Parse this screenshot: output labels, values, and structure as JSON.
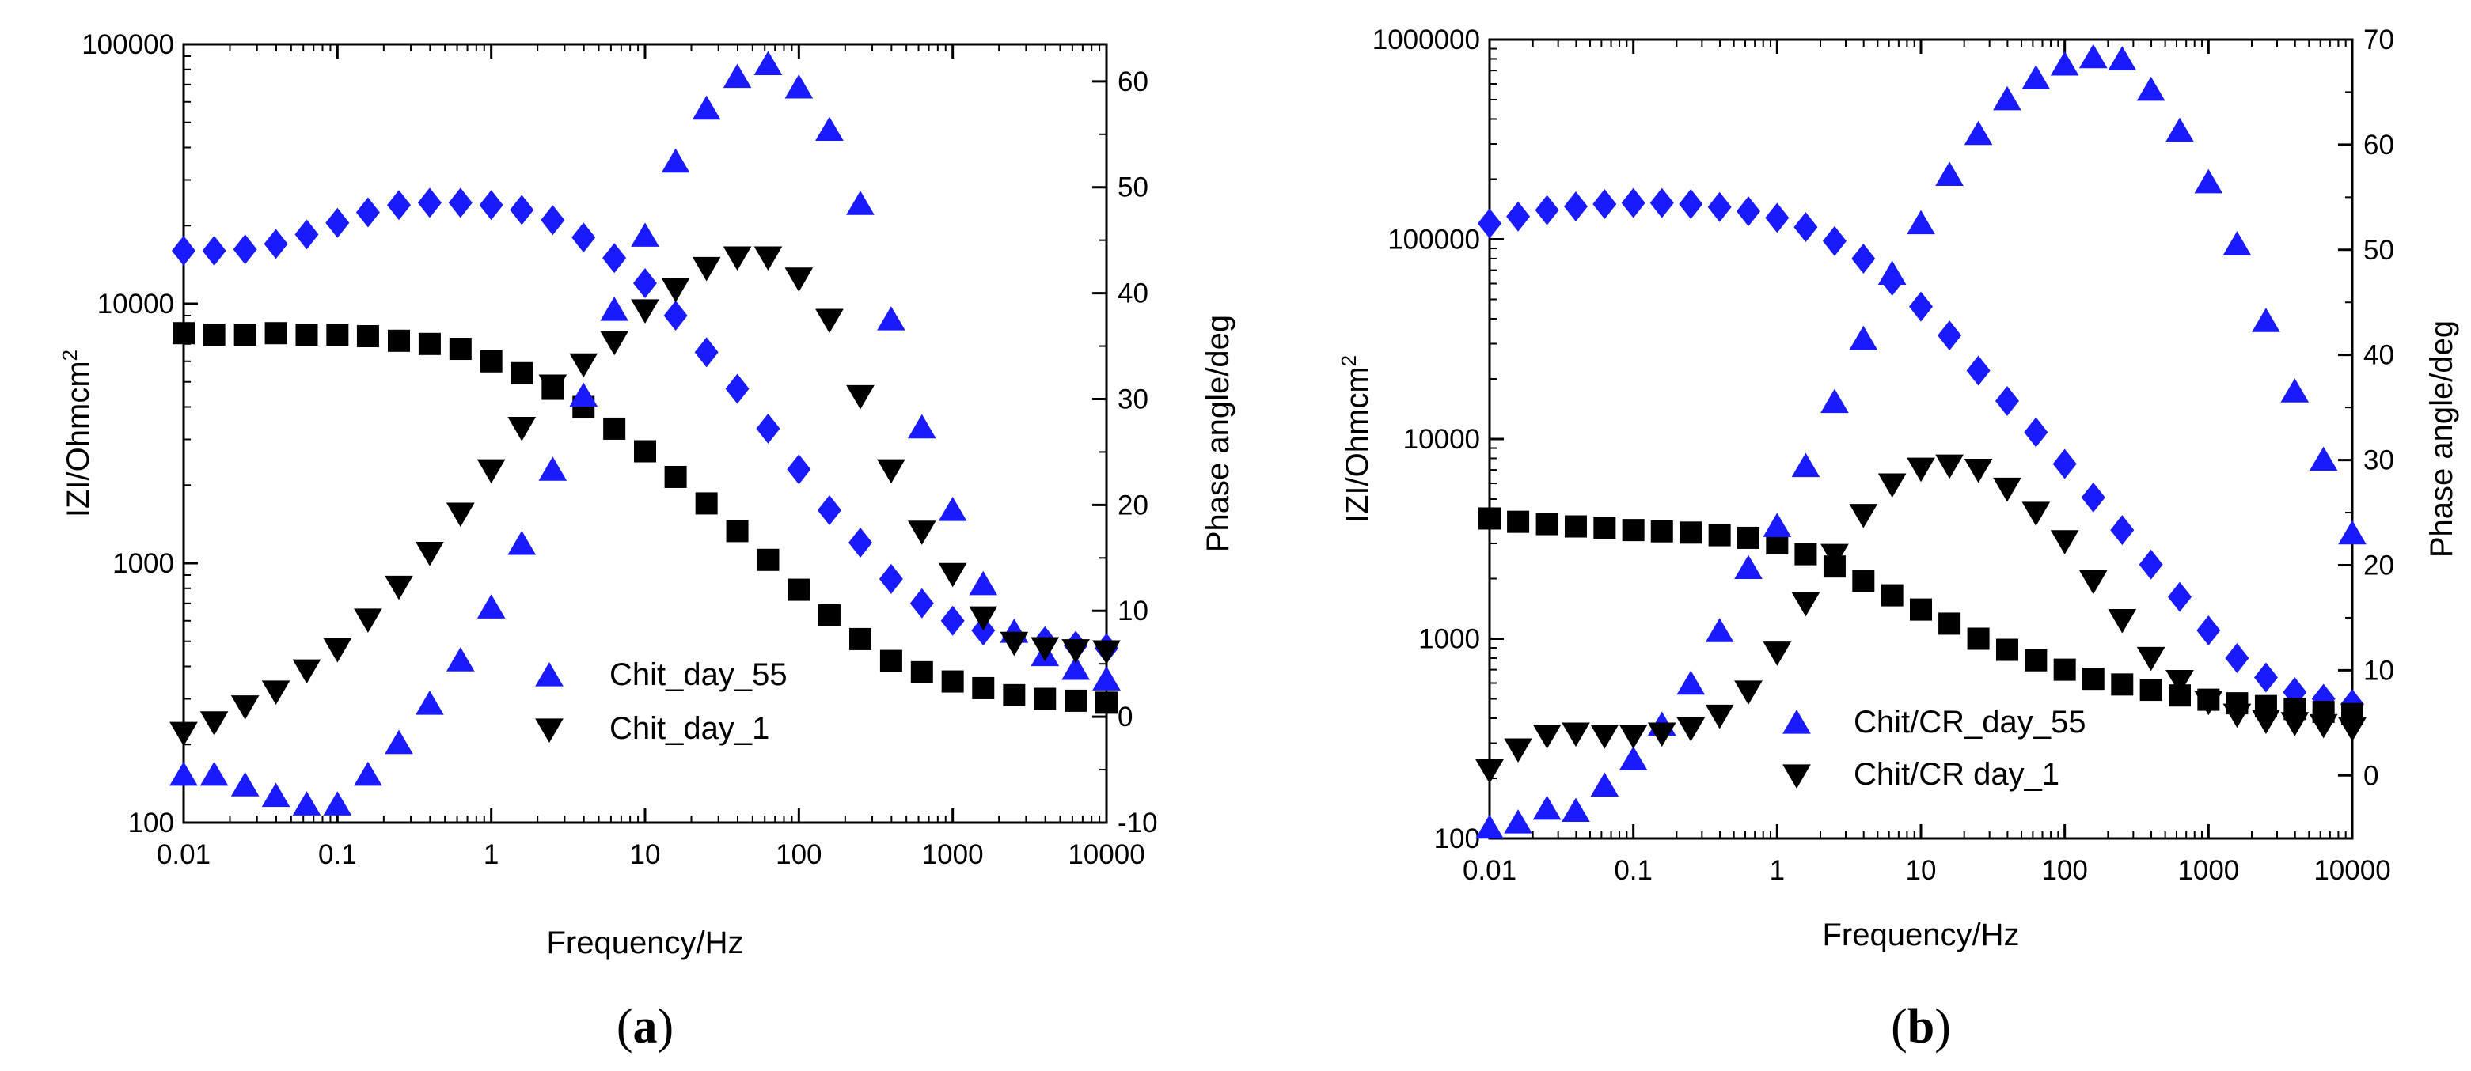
{
  "chart_data": [
    {
      "panel_label": "(a)",
      "panel_letter": "a",
      "type": "scatter",
      "xlabel": "Frequency/Hz",
      "ylabel_left": "IZI/Ohmcm",
      "ylabel_left_sup": "2",
      "ylabel_right": "Phase angle/deg",
      "xscale": "log",
      "xlim": [
        0.01,
        10000
      ],
      "xticks": [
        "0.01",
        "0.1",
        "1",
        "10",
        "100",
        "1000",
        "10000"
      ],
      "ylim_left": [
        100,
        100000
      ],
      "yticks_left": [
        "100",
        "1000",
        "10000",
        "100000"
      ],
      "ylim_right": [
        -10,
        63.5
      ],
      "yticks_right": [
        "-10",
        "0",
        "10",
        "20",
        "30",
        "40",
        "50",
        "60"
      ],
      "legend_position": "lower-center",
      "colors": {
        "day_55": "#1a1aff",
        "day_1": "#000000"
      },
      "series": [
        {
          "name": "Chit_day_55 |Z|",
          "axis": "left",
          "marker": "diamond",
          "color": "#1a1aff",
          "in_legend": false,
          "x": [
            0.01,
            0.0158,
            0.0251,
            0.0398,
            0.0631,
            0.1,
            0.158,
            0.251,
            0.398,
            0.631,
            1,
            1.58,
            2.51,
            3.98,
            6.31,
            10,
            15.8,
            25.1,
            39.8,
            63.1,
            100,
            158,
            251,
            398,
            631,
            1000,
            1580,
            2510,
            3980,
            6310,
            10000
          ],
          "y": [
            16000,
            16000,
            16200,
            17000,
            18500,
            20500,
            22500,
            24000,
            24500,
            24500,
            24000,
            23000,
            21000,
            18000,
            15000,
            12000,
            9000,
            6500,
            4700,
            3300,
            2300,
            1600,
            1200,
            870,
            700,
            600,
            550,
            520,
            500,
            480,
            470
          ]
        },
        {
          "name": "Chit_day_1 |Z|",
          "axis": "left",
          "marker": "square",
          "color": "#000000",
          "in_legend": false,
          "x": [
            0.01,
            0.0158,
            0.0251,
            0.0398,
            0.0631,
            0.1,
            0.158,
            0.251,
            0.398,
            0.631,
            1,
            1.58,
            2.51,
            3.98,
            6.31,
            10,
            15.8,
            25.1,
            39.8,
            63.1,
            100,
            158,
            251,
            398,
            631,
            1000,
            1580,
            2510,
            3980,
            6310,
            10000
          ],
          "y": [
            7700,
            7600,
            7600,
            7700,
            7600,
            7600,
            7500,
            7200,
            7000,
            6700,
            6000,
            5400,
            4700,
            4000,
            3300,
            2700,
            2150,
            1700,
            1330,
            1030,
            790,
            630,
            510,
            420,
            380,
            350,
            330,
            310,
            300,
            295,
            290
          ]
        },
        {
          "name": "Chit_day_55",
          "axis": "right",
          "marker": "triangle-up",
          "color": "#1a1aff",
          "in_legend": true,
          "x": [
            0.01,
            0.0158,
            0.0251,
            0.0398,
            0.0631,
            0.1,
            0.158,
            0.251,
            0.398,
            0.631,
            1,
            1.58,
            2.51,
            3.98,
            6.31,
            10,
            15.8,
            25.1,
            39.8,
            63.1,
            100,
            158,
            251,
            398,
            631,
            1000,
            1580,
            2510,
            3980,
            6310,
            10000
          ],
          "y": [
            -5.5,
            -5.5,
            -6.5,
            -7.5,
            -8.3,
            -8.3,
            -5.5,
            -2.5,
            1.2,
            5.3,
            10.3,
            16.3,
            23.3,
            30.3,
            38.4,
            45.4,
            52.4,
            57.4,
            60.4,
            61.6,
            59.4,
            55.4,
            48.4,
            37.5,
            27.3,
            19.5,
            12.5,
            8.0,
            5.8,
            4.5,
            3.5
          ]
        },
        {
          "name": "Chit_day_1",
          "axis": "right",
          "marker": "triangle-down",
          "color": "#000000",
          "in_legend": true,
          "x": [
            0.01,
            0.0158,
            0.0251,
            0.0398,
            0.0631,
            0.1,
            0.158,
            0.251,
            0.398,
            0.631,
            1,
            1.58,
            2.51,
            3.98,
            6.31,
            10,
            15.8,
            25.1,
            39.8,
            63.1,
            100,
            158,
            251,
            398,
            631,
            1000,
            1580,
            2510,
            3980,
            6310,
            10000
          ],
          "y": [
            -1.5,
            -0.5,
            1.0,
            2.4,
            4.4,
            6.4,
            9.2,
            12.3,
            15.5,
            19.2,
            23.3,
            27.3,
            31.3,
            33.3,
            35.4,
            38.4,
            40.4,
            42.4,
            43.4,
            43.4,
            41.4,
            37.5,
            30.3,
            23.3,
            17.5,
            13.5,
            9.4,
            7.0,
            6.5,
            6.3,
            6.2
          ]
        }
      ]
    },
    {
      "panel_label": "(b)",
      "panel_letter": "b",
      "type": "scatter",
      "xlabel": "Frequency/Hz",
      "ylabel_left": "IZI/Ohmcm",
      "ylabel_left_sup": "2",
      "ylabel_right": "Phase angle/deg",
      "xscale": "log",
      "xlim": [
        0.01,
        10000
      ],
      "xticks": [
        "0.01",
        "0.1",
        "1",
        "10",
        "100",
        "1000",
        "10000"
      ],
      "ylim_left": [
        100,
        1000000
      ],
      "yticks_left": [
        "100",
        "1000",
        "10000",
        "100000",
        "1000000"
      ],
      "ylim_right": [
        -6,
        70
      ],
      "yticks_right": [
        "0",
        "10",
        "20",
        "30",
        "40",
        "50",
        "60",
        "70"
      ],
      "legend_position": "lower-center",
      "colors": {
        "day_55": "#1a1aff",
        "day_1": "#000000"
      },
      "series": [
        {
          "name": "Chit/CR_day_55 |Z|",
          "axis": "left",
          "marker": "diamond",
          "color": "#1a1aff",
          "in_legend": false,
          "x": [
            0.01,
            0.0158,
            0.0251,
            0.0398,
            0.0631,
            0.1,
            0.158,
            0.251,
            0.398,
            0.631,
            1,
            1.58,
            2.51,
            3.98,
            6.31,
            10,
            15.8,
            25.1,
            39.8,
            63.1,
            100,
            158,
            251,
            398,
            631,
            1000,
            1580,
            2510,
            3980,
            6310,
            10000
          ],
          "y": [
            120000,
            130000,
            140000,
            146000,
            150000,
            152000,
            152000,
            150000,
            145000,
            138000,
            128000,
            115000,
            98000,
            80000,
            62000,
            46000,
            33000,
            22000,
            15500,
            10800,
            7500,
            5100,
            3500,
            2350,
            1620,
            1100,
            800,
            640,
            540,
            500,
            470
          ]
        },
        {
          "name": "Chit/CR day_1 |Z|",
          "axis": "left",
          "marker": "square",
          "color": "#000000",
          "in_legend": false,
          "x": [
            0.01,
            0.0158,
            0.0251,
            0.0398,
            0.0631,
            0.1,
            0.158,
            0.251,
            0.398,
            0.631,
            1,
            1.58,
            2.51,
            3.98,
            6.31,
            10,
            15.8,
            25.1,
            39.8,
            63.1,
            100,
            158,
            251,
            398,
            631,
            1000,
            1580,
            2510,
            3980,
            6310,
            10000
          ],
          "y": [
            4000,
            3850,
            3750,
            3650,
            3600,
            3500,
            3450,
            3400,
            3300,
            3200,
            3000,
            2650,
            2300,
            1950,
            1650,
            1400,
            1190,
            1000,
            880,
            780,
            700,
            630,
            590,
            555,
            520,
            495,
            475,
            460,
            445,
            430,
            420
          ]
        },
        {
          "name": "Chit/CR_day_55",
          "axis": "right",
          "marker": "triangle-up",
          "color": "#1a1aff",
          "in_legend": true,
          "x": [
            0.01,
            0.0158,
            0.0251,
            0.0398,
            0.0631,
            0.1,
            0.158,
            0.251,
            0.398,
            0.631,
            1,
            1.58,
            2.51,
            3.98,
            6.31,
            10,
            15.8,
            25.1,
            39.8,
            63.1,
            100,
            158,
            251,
            398,
            631,
            1000,
            1580,
            2510,
            3980,
            6310,
            10000
          ],
          "y": [
            -5.0,
            -4.5,
            -3.2,
            -3.4,
            -1.0,
            1.5,
            4.8,
            8.7,
            13.7,
            19.7,
            23.7,
            29.4,
            35.5,
            41.5,
            47.7,
            52.5,
            57.1,
            61.0,
            64.3,
            66.3,
            67.6,
            68.3,
            68.1,
            65.2,
            61.3,
            56.4,
            50.5,
            43.2,
            36.5,
            30.0,
            23.0
          ]
        },
        {
          "name": "Chit/CR day_1",
          "axis": "right",
          "marker": "triangle-down",
          "color": "#000000",
          "in_legend": true,
          "x": [
            0.01,
            0.0158,
            0.0251,
            0.0398,
            0.0631,
            0.1,
            0.158,
            0.251,
            0.398,
            0.631,
            1,
            1.58,
            2.51,
            3.98,
            6.31,
            10,
            15.8,
            25.1,
            39.8,
            63.1,
            100,
            158,
            251,
            398,
            631,
            1000,
            1580,
            2510,
            3980,
            6310,
            10000
          ],
          "y": [
            0.5,
            2.5,
            3.8,
            4.0,
            3.8,
            3.8,
            4.0,
            4.5,
            5.7,
            8.0,
            11.7,
            16.4,
            21.0,
            24.8,
            27.7,
            29.2,
            29.5,
            29.1,
            27.3,
            25.0,
            22.3,
            18.5,
            14.8,
            11.2,
            9.0,
            7.0,
            5.8,
            5.2,
            5.0,
            4.8,
            4.5
          ]
        }
      ]
    }
  ]
}
